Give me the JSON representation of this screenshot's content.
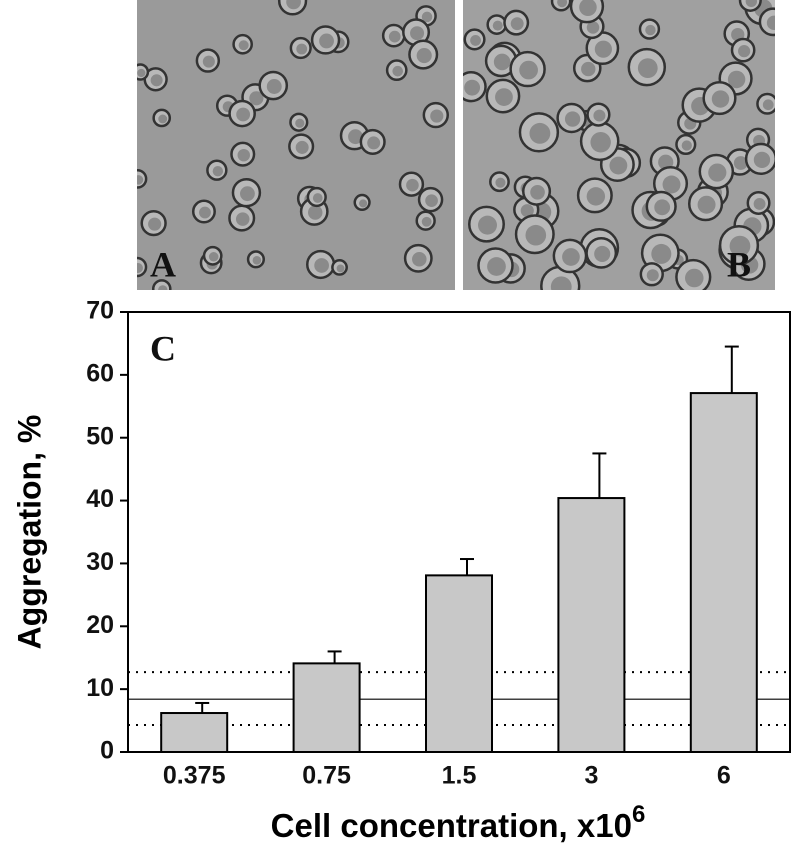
{
  "images": [
    {
      "label": "A"
    },
    {
      "label": "B"
    }
  ],
  "chart_data": {
    "type": "bar",
    "panel_label": "C",
    "y_label": "Aggregation, %",
    "x_label": "Cell concentration, x10",
    "x_label_exponent": "6",
    "categories": [
      "0.375",
      "0.75",
      "1.5",
      "3",
      "6"
    ],
    "values": [
      6.2,
      14.1,
      28.1,
      40.4,
      57.1
    ],
    "errors": [
      1.6,
      1.9,
      2.6,
      7.1,
      7.4
    ],
    "color": "#c8c8c8",
    "ylim": [
      0,
      70
    ],
    "yticks": [
      0,
      10,
      20,
      30,
      40,
      50,
      60,
      70
    ],
    "reference_lines": [
      {
        "value": 8.4,
        "style": "solid"
      },
      {
        "value": 12.7,
        "style": "dotted"
      },
      {
        "value": 4.3,
        "style": "dotted"
      }
    ]
  }
}
